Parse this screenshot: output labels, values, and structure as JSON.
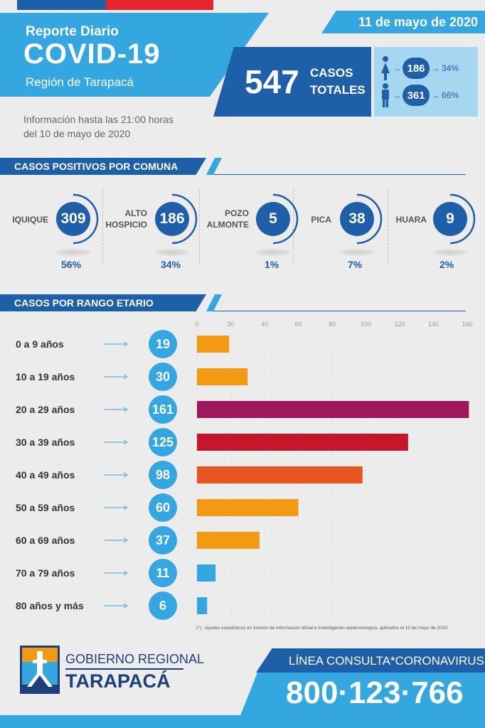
{
  "header": {
    "report_label": "Reporte Diario",
    "title": "COVID-19",
    "region": "Región de Tarapacá",
    "date": "11 de mayo de 2020",
    "info_line1": "Información hasta las 21:00 horas",
    "info_line2": "del 10 de mayo de 2020"
  },
  "totals": {
    "total": "547",
    "label_line1": "CASOS",
    "label_line2": "TOTALES",
    "gender": [
      {
        "count": "186",
        "pct": "34%",
        "icon": "female-person-icon"
      },
      {
        "count": "361",
        "pct": "66%",
        "icon": "male-person-icon"
      }
    ]
  },
  "comunas": {
    "title": "CASOS POSITIVOS POR COMUNA",
    "items": [
      {
        "name_line1": "IQUIQUE",
        "name_line2": "",
        "count": "309",
        "pct": "56%"
      },
      {
        "name_line1": "ALTO",
        "name_line2": "HOSPICIO",
        "count": "186",
        "pct": "34%"
      },
      {
        "name_line1": "POZO",
        "name_line2": "ALMONTE",
        "count": "5",
        "pct": "1%"
      },
      {
        "name_line1": "PICA",
        "name_line2": "",
        "count": "38",
        "pct": "7%"
      },
      {
        "name_line1": "HUARA",
        "name_line2": "",
        "count": "9",
        "pct": "2%"
      }
    ]
  },
  "ages": {
    "title": "CASOS POR RANGO ETARIO",
    "footnote": "(*) : Ajustes estadísticos en función de información oficial e investigación epidemiológica, aplicados el 10 de mayo de 2020."
  },
  "chart_data": {
    "type": "bar",
    "orientation": "horizontal",
    "categories": [
      "0 a 9 años",
      "10 a 19 años",
      "20 a 29 años",
      "30 a 39 años",
      "40 a 49 años",
      "50 a 59 años",
      "60 a 69 años",
      "70 a 79 años",
      "80 años y más"
    ],
    "values": [
      19,
      30,
      161,
      125,
      98,
      60,
      37,
      11,
      6
    ],
    "colors": [
      "#f39a13",
      "#f39a13",
      "#a0185b",
      "#c4182a",
      "#e85520",
      "#f39a13",
      "#f39a13",
      "#35a7e0",
      "#35a7e0"
    ],
    "xlim": [
      0,
      160
    ],
    "xticks": [
      0,
      20,
      40,
      60,
      80,
      100,
      120,
      140,
      160
    ],
    "grid": true,
    "tick_position": "top"
  },
  "footer": {
    "gov_text": "GOBIERNO REGIONAL",
    "gov_name": "TARAPACÁ",
    "phone_label": "LÍNEA CONSULTA*CORONAVIRUS",
    "phone_number": "800·123·766"
  },
  "colors": {
    "dark_blue": "#1d5fa8",
    "light_blue": "#35a7e0",
    "pale_blue": "#a6d6f0",
    "background": "#ececec"
  }
}
